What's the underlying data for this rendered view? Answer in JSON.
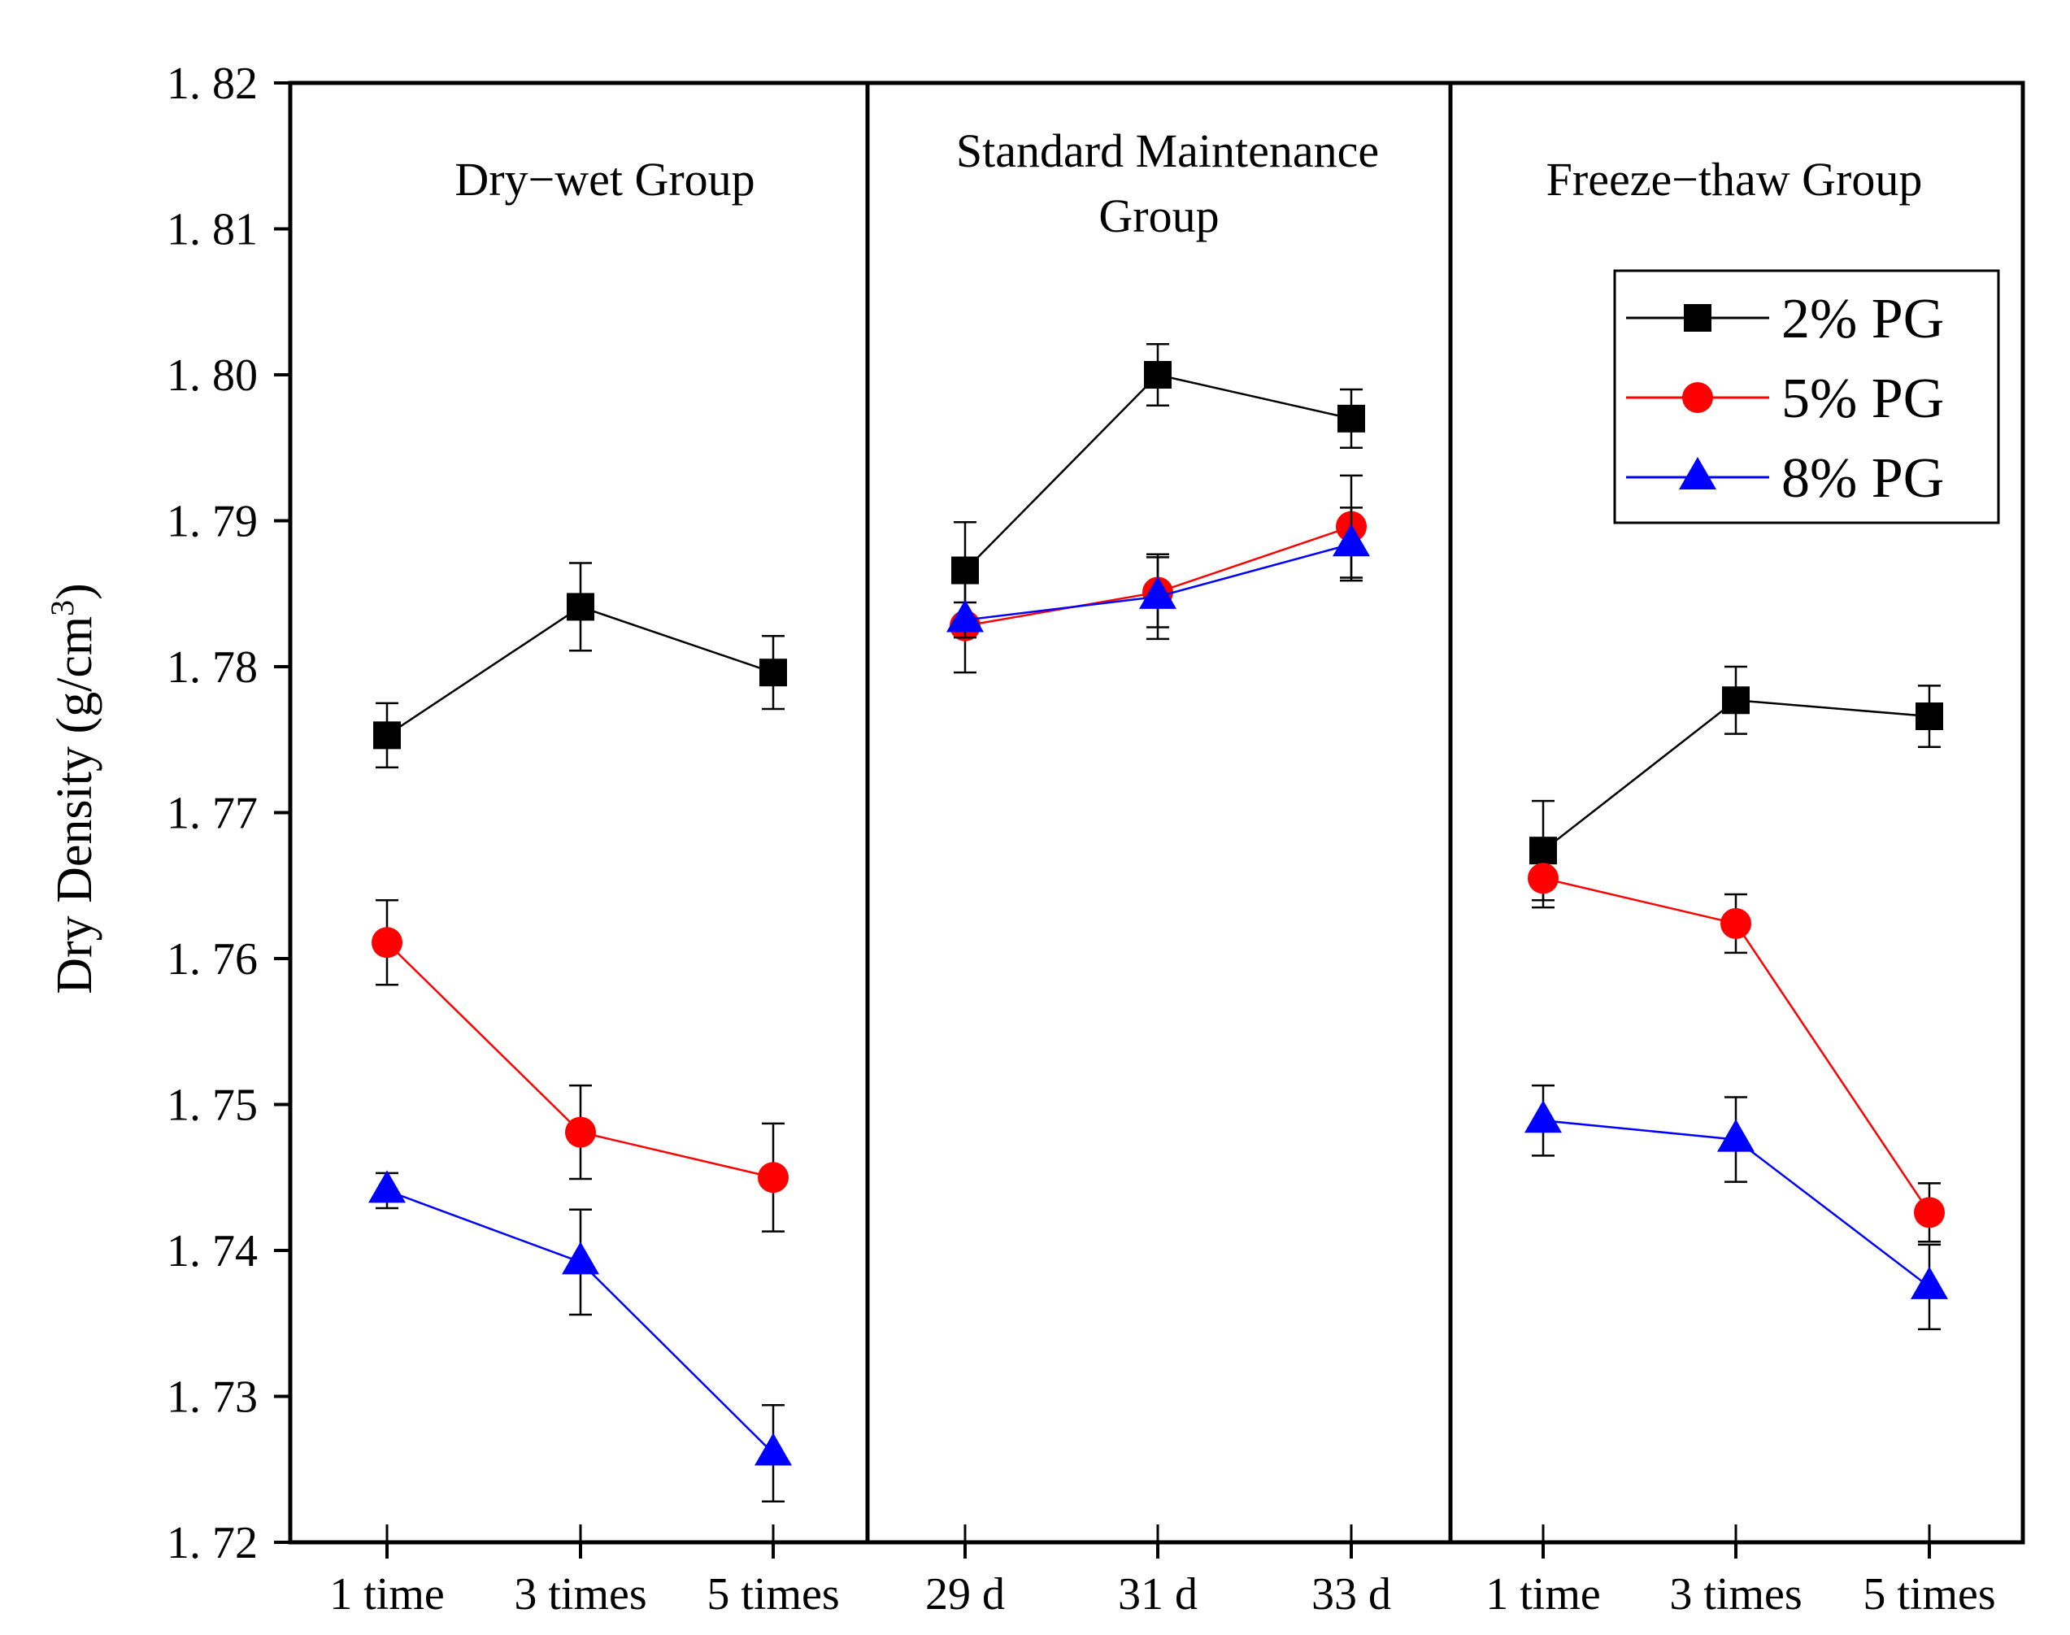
{
  "chart_data": {
    "type": "line",
    "ylabel_main": "Dry Density",
    "ylabel_unit_prefix": "(g/cm",
    "ylabel_unit_sup": "3",
    "ylabel_unit_suffix": ")",
    "ylim": [
      1.72,
      1.82
    ],
    "yticks": [
      1.72,
      1.73,
      1.74,
      1.75,
      1.76,
      1.77,
      1.78,
      1.79,
      1.8,
      1.81,
      1.82
    ],
    "ytick_labels": [
      "1. 72",
      "1. 73",
      "1. 74",
      "1. 75",
      "1. 76",
      "1. 77",
      "1. 78",
      "1. 79",
      "1. 80",
      "1. 81",
      "1. 82"
    ],
    "legend": {
      "position": "top-right",
      "entries": [
        "2%  PG",
        "5%  PG",
        "8%  PG"
      ]
    },
    "series_styles": [
      {
        "name": "2% PG",
        "color": "#000000",
        "marker": "square"
      },
      {
        "name": "5% PG",
        "color": "#ff0000",
        "marker": "circle"
      },
      {
        "name": "8% PG",
        "color": "#0000ff",
        "marker": "triangle"
      }
    ],
    "panels": [
      {
        "title_lines": [
          "Dry−wet Group"
        ],
        "categories": [
          "1 time",
          "3 times",
          "5 times"
        ],
        "series": [
          {
            "name": "2% PG",
            "values": [
              1.7753,
              1.7841,
              1.7796
            ],
            "errors": [
              0.0022,
              0.003,
              0.0025
            ]
          },
          {
            "name": "5% PG",
            "values": [
              1.7611,
              1.7481,
              1.745
            ],
            "errors": [
              0.0029,
              0.0032,
              0.0037
            ]
          },
          {
            "name": "8% PG",
            "values": [
              1.7441,
              1.7392,
              1.7261
            ],
            "errors": [
              0.0012,
              0.0036,
              0.0033
            ]
          }
        ]
      },
      {
        "title_lines": [
          "Standard Maintenance",
          "Group"
        ],
        "categories": [
          "29 d",
          "31 d",
          "33 d"
        ],
        "series": [
          {
            "name": "2% PG",
            "values": [
              1.7866,
              1.8,
              1.797
            ],
            "errors": [
              0.0033,
              0.0021,
              0.002
            ]
          },
          {
            "name": "5% PG",
            "values": [
              1.7828,
              1.7851,
              1.7896
            ],
            "errors": [
              0.0032,
              0.0024,
              0.0035
            ]
          },
          {
            "name": "8% PG",
            "values": [
              1.7832,
              1.7848,
              1.7884
            ],
            "errors": [
              0.0012,
              0.0029,
              0.0025
            ]
          }
        ]
      },
      {
        "title_lines": [
          "Freeze−thaw Group"
        ],
        "categories": [
          "1 time",
          "3 times",
          "5 times"
        ],
        "series": [
          {
            "name": "2% PG",
            "values": [
              1.7674,
              1.7777,
              1.7766
            ],
            "errors": [
              0.0034,
              0.0023,
              0.0021
            ]
          },
          {
            "name": "5% PG",
            "values": [
              1.7655,
              1.7624,
              1.7426
            ],
            "errors": [
              0.002,
              0.002,
              0.002
            ]
          },
          {
            "name": "8% PG",
            "values": [
              1.7489,
              1.7476,
              1.7375
            ],
            "errors": [
              0.0024,
              0.0029,
              0.0029
            ]
          }
        ]
      }
    ]
  }
}
